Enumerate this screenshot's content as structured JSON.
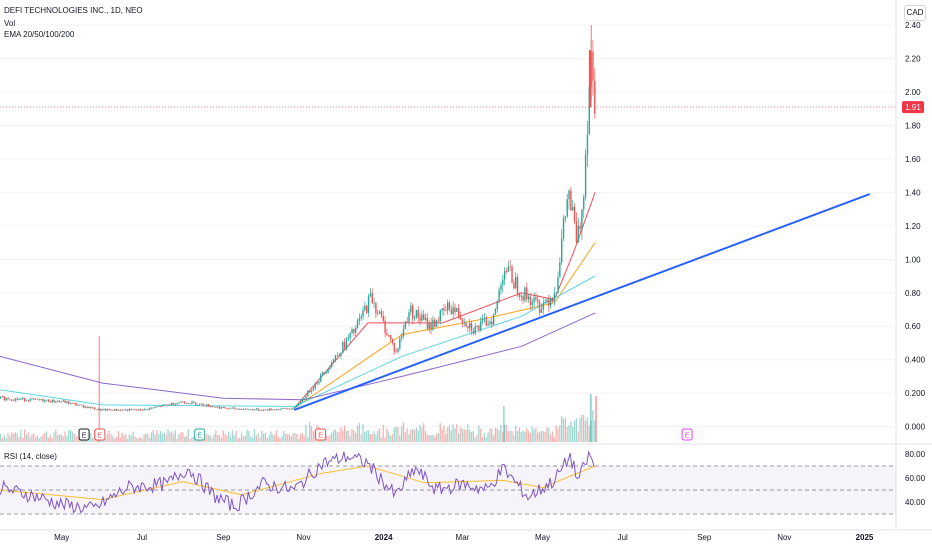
{
  "header": {
    "title": "DEFI TECHNOLOGIES INC., 1D, NEO",
    "vol_label": "Vol",
    "ema_label": "EMA 20/50/100/200",
    "currency": "CAD"
  },
  "rsi": {
    "label": "RSI (14, close)",
    "ticks": [
      "80.00",
      "60.00",
      "40.00"
    ],
    "upper": 70,
    "mid": 50,
    "lower": 30
  },
  "colors": {
    "up": "#26a69a",
    "down": "#ef5350",
    "ema20": "#f23645",
    "ema50": "#ff9800",
    "ema100": "#4dd0e1",
    "ema200": "#7e57c2",
    "trendline": "#2962ff",
    "rsi": "#7e57c2",
    "rsi_ma": "#fbc02d",
    "price_badge": "#f23645"
  },
  "events": [
    {
      "label": "E",
      "date": "2023-05-18",
      "kind": "past"
    },
    {
      "label": "E",
      "date": "2023-05-30",
      "kind": "down"
    },
    {
      "label": "E",
      "date": "2023-08-14",
      "kind": "up"
    },
    {
      "label": "E",
      "date": "2023-11-14",
      "kind": "down"
    },
    {
      "label": "E",
      "date": "2024-08-19",
      "kind": "future"
    }
  ],
  "chart_data": {
    "type": "candlestick",
    "title": "DEFI TECHNOLOGIES INC., 1D, NEO",
    "x_ticks": [
      "May",
      "Jul",
      "Sep",
      "Nov",
      "2024",
      "Mar",
      "May",
      "Jul",
      "Sep",
      "Nov",
      "2025"
    ],
    "y_ticks": [
      "2.40",
      "2.20",
      "2.00",
      "1.80",
      "1.60",
      "1.40",
      "1.20",
      "1.00",
      "0.80",
      "0.60",
      "0.400",
      "0.200",
      "0.000"
    ],
    "ylim": [
      -0.08,
      2.55
    ],
    "last_price": "1.91",
    "price_series": [
      {
        "date": "2023-03-15",
        "close": 0.17
      },
      {
        "date": "2023-05-01",
        "close": 0.15
      },
      {
        "date": "2023-05-29",
        "close": 0.1
      },
      {
        "date": "2023-07-01",
        "close": 0.1
      },
      {
        "date": "2023-08-01",
        "close": 0.15
      },
      {
        "date": "2023-09-01",
        "close": 0.11
      },
      {
        "date": "2023-10-01",
        "close": 0.1
      },
      {
        "date": "2023-10-25",
        "close": 0.11
      },
      {
        "date": "2023-11-10",
        "close": 0.26
      },
      {
        "date": "2023-11-25",
        "close": 0.42
      },
      {
        "date": "2023-12-10",
        "close": 0.58
      },
      {
        "date": "2023-12-22",
        "close": 0.78
      },
      {
        "date": "2024-01-10",
        "close": 0.44
      },
      {
        "date": "2024-01-20",
        "close": 0.7
      },
      {
        "date": "2024-02-05",
        "close": 0.6
      },
      {
        "date": "2024-02-20",
        "close": 0.72
      },
      {
        "date": "2024-03-10",
        "close": 0.58
      },
      {
        "date": "2024-03-25",
        "close": 0.66
      },
      {
        "date": "2024-04-01",
        "close": 0.96
      },
      {
        "date": "2024-04-15",
        "close": 0.8
      },
      {
        "date": "2024-04-28",
        "close": 0.72
      },
      {
        "date": "2024-05-10",
        "close": 0.8
      },
      {
        "date": "2024-05-20",
        "close": 1.4
      },
      {
        "date": "2024-05-27",
        "close": 1.1
      },
      {
        "date": "2024-05-31",
        "close": 1.35
      },
      {
        "date": "2024-06-03",
        "close": 1.75
      },
      {
        "date": "2024-06-06",
        "close": 2.25
      },
      {
        "date": "2024-06-10",
        "close": 1.91
      }
    ],
    "high_wick": {
      "date": "2024-06-07",
      "value": 2.4
    },
    "trendline": [
      {
        "date": "2023-10-25",
        "value": 0.1
      },
      {
        "date": "2025-01-05",
        "value": 1.39
      }
    ],
    "ema_series": [
      {
        "name": "EMA 20",
        "points": [
          [
            "2023-10-25",
            0.11
          ],
          [
            "2023-12-20",
            0.62
          ],
          [
            "2024-02-15",
            0.62
          ],
          [
            "2024-04-15",
            0.8
          ],
          [
            "2024-05-10",
            0.76
          ],
          [
            "2024-05-25",
            1.05
          ],
          [
            "2024-06-10",
            1.4
          ]
        ]
      },
      {
        "name": "EMA 50",
        "points": [
          [
            "2023-10-25",
            0.11
          ],
          [
            "2024-01-15",
            0.55
          ],
          [
            "2024-03-15",
            0.64
          ],
          [
            "2024-05-10",
            0.74
          ],
          [
            "2024-06-10",
            1.1
          ]
        ]
      },
      {
        "name": "EMA 100",
        "points": [
          [
            "2023-03-15",
            0.22
          ],
          [
            "2023-06-01",
            0.13
          ],
          [
            "2023-10-25",
            0.12
          ],
          [
            "2024-01-15",
            0.42
          ],
          [
            "2024-04-15",
            0.66
          ],
          [
            "2024-06-10",
            0.9
          ]
        ]
      },
      {
        "name": "EMA 200",
        "points": [
          [
            "2023-03-15",
            0.42
          ],
          [
            "2023-06-01",
            0.26
          ],
          [
            "2023-09-01",
            0.17
          ],
          [
            "2023-11-01",
            0.16
          ],
          [
            "2024-01-15",
            0.3
          ],
          [
            "2024-04-15",
            0.48
          ],
          [
            "2024-06-10",
            0.68
          ]
        ]
      }
    ],
    "rsi_series": [
      [
        "2023-03-15",
        52
      ],
      [
        "2023-04-10",
        45
      ],
      [
        "2023-05-01",
        38
      ],
      [
        "2023-05-25",
        34
      ],
      [
        "2023-06-20",
        52
      ],
      [
        "2023-07-20",
        55
      ],
      [
        "2023-08-05",
        68
      ],
      [
        "2023-08-25",
        45
      ],
      [
        "2023-09-10",
        36
      ],
      [
        "2023-10-01",
        55
      ],
      [
        "2023-10-25",
        50
      ],
      [
        "2023-11-15",
        72
      ],
      [
        "2023-12-05",
        78
      ],
      [
        "2023-12-20",
        72
      ],
      [
        "2024-01-10",
        45
      ],
      [
        "2024-01-25",
        68
      ],
      [
        "2024-02-10",
        50
      ],
      [
        "2024-03-01",
        55
      ],
      [
        "2024-03-20",
        50
      ],
      [
        "2024-04-01",
        68
      ],
      [
        "2024-04-20",
        44
      ],
      [
        "2024-05-10",
        58
      ],
      [
        "2024-05-22",
        78
      ],
      [
        "2024-05-28",
        58
      ],
      [
        "2024-06-06",
        80
      ],
      [
        "2024-06-10",
        66
      ]
    ],
    "rsi_ma_series": [
      [
        "2023-03-15",
        50
      ],
      [
        "2023-06-01",
        42
      ],
      [
        "2023-08-01",
        57
      ],
      [
        "2023-09-15",
        46
      ],
      [
        "2023-11-15",
        64
      ],
      [
        "2023-12-20",
        70
      ],
      [
        "2024-02-01",
        56
      ],
      [
        "2024-04-01",
        58
      ],
      [
        "2024-05-01",
        52
      ],
      [
        "2024-06-10",
        70
      ]
    ]
  }
}
